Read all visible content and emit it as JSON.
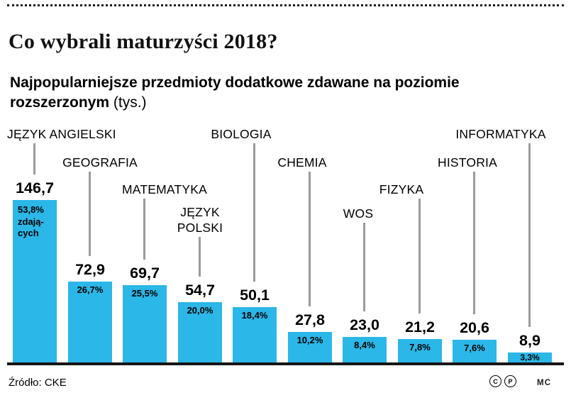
{
  "header": {
    "title": "Co wybrali maturzyści 2018?",
    "subtitle_line1": "Najpopularniejsze przedmioty dodatkowe zdawane na poziomie",
    "subtitle_line2_bold": "rozszerzonym",
    "subtitle_line2_rest": " (tys.)"
  },
  "footer": {
    "source": "Źródło: CKE",
    "badge_c": "C",
    "badge_p": "P",
    "credit": "MC"
  },
  "chart_data": {
    "type": "bar",
    "title": "Najpopularniejsze przedmioty dodatkowe zdawane na poziomie rozszerzonym (tys.)",
    "unit": "tys.",
    "ylim": [
      0,
      150
    ],
    "grid": false,
    "bar_color": "#2bb7e8",
    "categories": [
      "JĘZYK ANGIELSKI",
      "GEOGRAFIA",
      "MATEMATYKA",
      "JĘZYK POLSKI",
      "BIOLOGIA",
      "CHEMIA",
      "WOS",
      "FIZYKA",
      "HISTORIA",
      "INFORMATYKA"
    ],
    "values": [
      146.7,
      72.9,
      69.7,
      54.7,
      50.1,
      27.8,
      23.0,
      21.2,
      20.6,
      8.9
    ],
    "value_labels": [
      "146,7",
      "72,9",
      "69,7",
      "54,7",
      "50,1",
      "27,8",
      "23,0",
      "21,2",
      "20,6",
      "8,9"
    ],
    "percent_of_students": [
      53.8,
      26.7,
      25.5,
      20.0,
      18.4,
      10.2,
      8.4,
      7.8,
      7.6,
      3.3
    ],
    "percent_display": [
      "53,8%\nzdają-\ncych",
      "26,7%",
      "25,5%",
      "20,0%",
      "18,4%",
      "10,2%",
      "8,4%",
      "7,8%",
      "7,6%",
      "3,3%"
    ]
  }
}
